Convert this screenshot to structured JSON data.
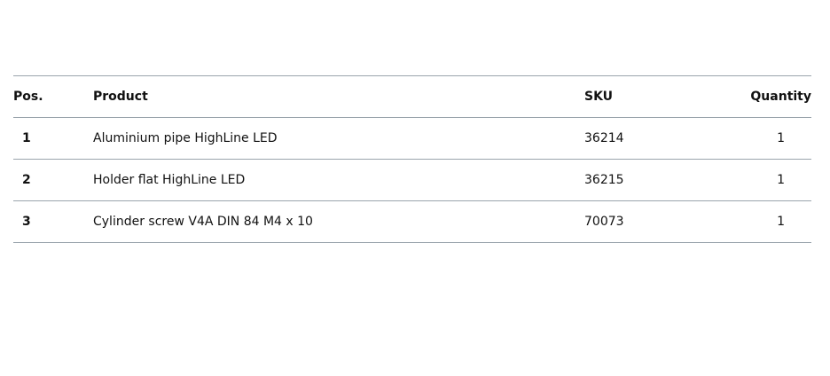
{
  "table": {
    "headers": {
      "pos": "Pos.",
      "product": "Product",
      "sku": "SKU",
      "quantity": "Quantity"
    },
    "rows": [
      {
        "pos": "1",
        "product": "Aluminium pipe HighLine LED",
        "sku": "36214",
        "quantity": "1"
      },
      {
        "pos": "2",
        "product": "Holder flat HighLine LED",
        "sku": "36215",
        "quantity": "1"
      },
      {
        "pos": "3",
        "product": "Cylinder screw V4A DIN 84 M4 x 10",
        "sku": "70073",
        "quantity": "1"
      }
    ]
  },
  "colors": {
    "divider": "#9aa4ac",
    "text": "#111111"
  }
}
